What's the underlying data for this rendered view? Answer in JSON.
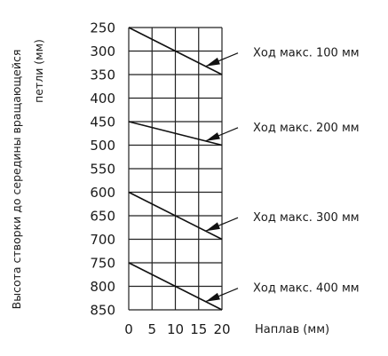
{
  "chart_data": {
    "type": "line",
    "ylabel_line1": "Высота створки до середины вращающейся",
    "ylabel_line2": "петли (мм)",
    "xlabel": "Наплав (мм)",
    "x_ticks": [
      "0",
      "5",
      "10",
      "15",
      "20"
    ],
    "y_ticks": [
      "250",
      "300",
      "350",
      "400",
      "450",
      "500",
      "550",
      "600",
      "650",
      "700",
      "750",
      "800",
      "850"
    ],
    "xlim": [
      0,
      20
    ],
    "ylim": [
      250,
      850
    ],
    "y_inverted": true,
    "grid": true,
    "series": [
      {
        "name": "Ход макс. 100 мм",
        "x": [
          0,
          20
        ],
        "y": [
          250,
          350
        ],
        "pointer_x": 16.5
      },
      {
        "name": "Ход макс. 200 мм",
        "x": [
          0,
          20
        ],
        "y": [
          450,
          500
        ],
        "pointer_x": 16.5
      },
      {
        "name": "Ход макс. 300 мм",
        "x": [
          0,
          20
        ],
        "y": [
          600,
          700
        ],
        "pointer_x": 16.5
      },
      {
        "name": "Ход макс. 400 мм",
        "x": [
          0,
          20
        ],
        "y": [
          750,
          850
        ],
        "pointer_x": 16.5
      }
    ]
  }
}
